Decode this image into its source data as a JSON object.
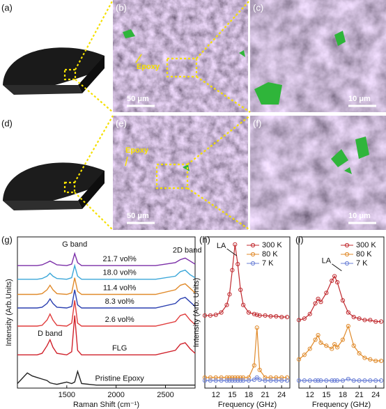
{
  "panels": {
    "labels": [
      "(a)",
      "(b)",
      "(c)",
      "(d)",
      "(e)",
      "(f)",
      "(g)",
      "(h)",
      "(i)"
    ]
  },
  "images": {
    "annotations": [
      "Epoxy",
      "Epoxy"
    ],
    "scale_bars": [
      "50 μm",
      "10 μm",
      "50 μm",
      "10 μm"
    ]
  },
  "chart_data": [
    {
      "type": "line",
      "xlabel": "Raman Shift (cm⁻¹)",
      "ylabel": "Intensity (Arb.Units)",
      "annotations": [
        "D band",
        "G band",
        "2D band"
      ],
      "xlim": [
        1000,
        2800
      ],
      "xticks": [
        1500,
        2000,
        2500
      ],
      "ylim": [
        0,
        10
      ],
      "x": [
        1000,
        1100,
        1150,
        1200,
        1250,
        1300,
        1330,
        1360,
        1400,
        1500,
        1550,
        1580,
        1610,
        1650,
        1800,
        2000,
        2200,
        2400,
        2600,
        2650,
        2700,
        2750,
        2800
      ],
      "series": [
        {
          "name": "21.7 vol%",
          "color": "#7b2fa8",
          "values": [
            8.1,
            8.1,
            8.1,
            8.1,
            8.15,
            8.3,
            8.4,
            8.3,
            8.15,
            8.1,
            8.2,
            8.9,
            8.3,
            8.1,
            8.1,
            8.1,
            8.1,
            8.1,
            8.3,
            8.5,
            8.6,
            8.4,
            8.2
          ]
        },
        {
          "name": "18.0 vol%",
          "color": "#3aa6d8",
          "values": [
            7.2,
            7.2,
            7.2,
            7.2,
            7.25,
            7.4,
            7.6,
            7.4,
            7.25,
            7.2,
            7.3,
            8.1,
            7.4,
            7.2,
            7.2,
            7.2,
            7.2,
            7.2,
            7.4,
            7.7,
            7.8,
            7.5,
            7.3
          ]
        },
        {
          "name": "11.4 vol%",
          "color": "#e08a2a",
          "values": [
            6.2,
            6.2,
            6.2,
            6.2,
            6.25,
            6.5,
            6.8,
            6.5,
            6.25,
            6.2,
            6.3,
            7.3,
            6.4,
            6.2,
            6.2,
            6.2,
            6.2,
            6.2,
            6.5,
            6.8,
            6.9,
            6.6,
            6.3
          ]
        },
        {
          "name": "8.3 vol%",
          "color": "#2a3fb0",
          "values": [
            5.3,
            5.3,
            5.3,
            5.3,
            5.35,
            5.6,
            5.9,
            5.6,
            5.35,
            5.3,
            5.4,
            6.5,
            5.5,
            5.3,
            5.3,
            5.3,
            5.3,
            5.3,
            5.6,
            5.9,
            6.0,
            5.7,
            5.4
          ]
        },
        {
          "name": "2.6 vol%",
          "color": "#e03a3a",
          "values": [
            4.1,
            4.1,
            4.1,
            4.1,
            4.15,
            4.5,
            4.9,
            4.5,
            4.15,
            4.1,
            4.3,
            5.8,
            4.3,
            4.1,
            4.1,
            4.1,
            4.1,
            4.1,
            4.4,
            4.8,
            4.9,
            4.5,
            4.2
          ]
        },
        {
          "name": "FLG",
          "color": "#d0202a",
          "values": [
            2.2,
            2.2,
            2.2,
            2.2,
            2.3,
            2.8,
            3.2,
            2.7,
            2.3,
            2.2,
            2.4,
            4.8,
            2.5,
            2.2,
            2.2,
            2.2,
            2.2,
            2.2,
            2.5,
            2.9,
            3.0,
            2.6,
            2.3
          ]
        },
        {
          "name": "Pristine Epoxy",
          "color": "#222222",
          "values": [
            0.3,
            1.0,
            0.8,
            0.7,
            0.6,
            0.5,
            0.35,
            0.3,
            0.25,
            0.4,
            0.3,
            0.4,
            1.1,
            0.3,
            0.2,
            0.2,
            0.2,
            0.2,
            0.2,
            0.2,
            0.2,
            0.2,
            0.2
          ]
        }
      ]
    },
    {
      "type": "line",
      "markers": true,
      "xlabel": "Frequency (GHz)",
      "ylabel": "Intensity (Arb. Units)",
      "annotations": [
        "LA"
      ],
      "legend": "upper right",
      "xlim": [
        10,
        25.5
      ],
      "xticks": [
        12,
        15,
        18,
        21,
        24
      ],
      "ylim": [
        0,
        10
      ],
      "x": [
        10,
        11,
        12,
        13,
        14,
        14.5,
        15,
        15.5,
        16,
        16.5,
        17,
        18,
        19,
        19.5,
        20,
        21,
        22,
        23,
        24,
        25
      ],
      "series": [
        {
          "name": "300 K",
          "color": "#c0282d",
          "values": [
            4.8,
            4.8,
            4.85,
            5.0,
            5.5,
            6.2,
            7.8,
            9.5,
            8.2,
            6.5,
            5.5,
            5.0,
            4.9,
            4.85,
            4.8,
            4.8,
            4.75,
            4.75,
            4.7,
            4.7
          ]
        },
        {
          "name": "80 K",
          "color": "#e08a2a",
          "values": [
            0.7,
            0.7,
            0.7,
            0.7,
            0.7,
            0.7,
            0.7,
            0.7,
            0.7,
            0.7,
            0.7,
            0.7,
            1.5,
            4.0,
            1.2,
            0.7,
            0.7,
            0.7,
            0.7,
            0.7
          ]
        },
        {
          "name": "7 K",
          "color": "#6a7fd6",
          "values": [
            0.5,
            0.5,
            0.5,
            0.5,
            0.5,
            0.5,
            0.5,
            0.5,
            0.5,
            0.5,
            0.5,
            0.5,
            0.55,
            0.7,
            0.55,
            0.5,
            0.5,
            0.5,
            0.5,
            0.5
          ]
        }
      ]
    },
    {
      "type": "line",
      "markers": true,
      "xlabel": "Frequency (GHz)",
      "annotations": [
        "LA"
      ],
      "legend": "upper right",
      "xlim": [
        10,
        25.5
      ],
      "xticks": [
        12,
        15,
        18,
        21,
        24
      ],
      "ylim": [
        0,
        10
      ],
      "x": [
        10,
        11,
        12,
        13,
        13.5,
        14,
        15,
        16,
        16.5,
        17,
        18,
        19,
        20,
        21,
        22,
        23,
        24,
        25
      ],
      "series": [
        {
          "name": "300 K",
          "color": "#c0282d",
          "values": [
            4.5,
            4.6,
            4.9,
            5.6,
            5.9,
            5.7,
            6.3,
            7.1,
            7.4,
            7.0,
            5.8,
            5.0,
            4.7,
            4.6,
            4.5,
            4.5,
            4.4,
            4.4
          ]
        },
        {
          "name": "80 K",
          "color": "#e08a2a",
          "values": [
            1.9,
            2.2,
            2.6,
            3.2,
            3.5,
            3.0,
            2.8,
            2.6,
            2.9,
            2.7,
            3.2,
            4.1,
            2.8,
            2.3,
            2.0,
            1.9,
            1.8,
            1.8
          ]
        },
        {
          "name": "7 K",
          "color": "#6a7fd6",
          "values": [
            0.5,
            0.5,
            0.5,
            0.5,
            0.5,
            0.5,
            0.5,
            0.5,
            0.5,
            0.5,
            0.5,
            0.6,
            0.5,
            0.5,
            0.5,
            0.5,
            0.5,
            0.5
          ]
        }
      ]
    }
  ]
}
